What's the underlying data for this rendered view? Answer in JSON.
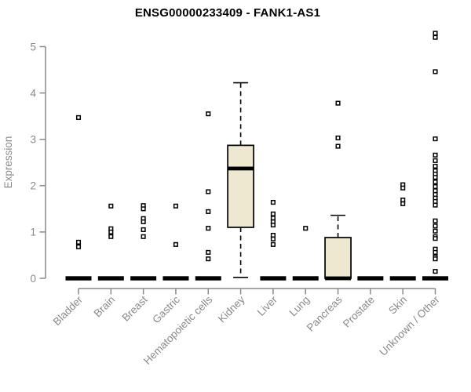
{
  "chart_data": {
    "type": "boxplot",
    "title": "ENSG00000233409 - FANK1-AS1",
    "ylabel": "Expression",
    "xlabel": "",
    "ylim": [
      0,
      5.3
    ],
    "yticks": [
      0,
      1,
      2,
      3,
      4,
      5
    ],
    "grid": false,
    "legend": "none",
    "categories": [
      "Bladder",
      "Brain",
      "Breast",
      "Gastric",
      "Hematopoietic cells",
      "Kidney",
      "Liver",
      "Lung",
      "Pancreas",
      "Prostate",
      "Skin",
      "Unknown / Other"
    ],
    "boxes": [
      {
        "category": "Bladder",
        "q1": 0,
        "median": 0,
        "q3": 0,
        "whisker_low": 0,
        "whisker_high": 0,
        "outliers": [
          3.47,
          0.78,
          0.68
        ]
      },
      {
        "category": "Brain",
        "q1": 0,
        "median": 0,
        "q3": 0,
        "whisker_low": 0,
        "whisker_high": 0,
        "outliers": [
          1.56,
          1.07,
          1.0,
          0.9
        ]
      },
      {
        "category": "Breast",
        "q1": 0,
        "median": 0,
        "q3": 0,
        "whisker_low": 0,
        "whisker_high": 0,
        "outliers": [
          1.57,
          1.5,
          1.29,
          1.22,
          1.05,
          0.9
        ]
      },
      {
        "category": "Gastric",
        "q1": 0,
        "median": 0,
        "q3": 0,
        "whisker_low": 0,
        "whisker_high": 0,
        "outliers": [
          1.56,
          0.73
        ]
      },
      {
        "category": "Hematopoietic cells",
        "q1": 0,
        "median": 0,
        "q3": 0,
        "whisker_low": 0,
        "whisker_high": 0,
        "outliers": [
          3.55,
          1.87,
          1.44,
          1.08,
          0.56,
          0.42
        ]
      },
      {
        "category": "Kidney",
        "q1": 1.1,
        "median": 2.37,
        "q3": 2.87,
        "whisker_low": 0.02,
        "whisker_high": 4.22,
        "outliers": []
      },
      {
        "category": "Liver",
        "q1": 0,
        "median": 0,
        "q3": 0,
        "whisker_low": 0,
        "whisker_high": 0,
        "outliers": [
          1.64,
          1.39,
          1.3,
          1.22,
          1.15,
          0.93,
          0.85,
          0.73
        ]
      },
      {
        "category": "Lung",
        "q1": 0,
        "median": 0,
        "q3": 0,
        "whisker_low": 0,
        "whisker_high": 0,
        "outliers": [
          1.08
        ]
      },
      {
        "category": "Pancreas",
        "q1": 0,
        "median": 0,
        "q3": 0.88,
        "whisker_low": 0,
        "whisker_high": 1.36,
        "outliers": [
          3.78,
          3.03,
          2.85
        ]
      },
      {
        "category": "Prostate",
        "q1": 0,
        "median": 0,
        "q3": 0,
        "whisker_low": 0,
        "whisker_high": 0,
        "outliers": []
      },
      {
        "category": "Skin",
        "q1": 0,
        "median": 0,
        "q3": 0,
        "whisker_low": 0,
        "whisker_high": 0,
        "outliers": [
          2.02,
          1.95,
          1.69,
          1.61
        ]
      },
      {
        "category": "Unknown / Other",
        "q1": 0,
        "median": 0,
        "q3": 0,
        "whisker_low": 0,
        "whisker_high": 0,
        "outliers": [
          5.29,
          5.2,
          4.46,
          3.01,
          2.66,
          2.54,
          2.42,
          2.32,
          2.25,
          2.18,
          2.08,
          1.98,
          1.89,
          1.81,
          1.73,
          1.66,
          1.58,
          1.24,
          1.13,
          1.02,
          0.9,
          0.86,
          0.63,
          0.56,
          0.46,
          0.42,
          0.15
        ]
      }
    ],
    "colors": {
      "box_fill": "#EDE8CF",
      "box_stroke": "#000000",
      "median": "#000000",
      "whisker": "#000000",
      "outlier_stroke": "#000000",
      "outlier_fill": "#FFFFFF",
      "axis": "#8A8A8A",
      "tick_label": "#8A8A8A",
      "title": "#000000",
      "background": "#FFFFFF"
    }
  }
}
